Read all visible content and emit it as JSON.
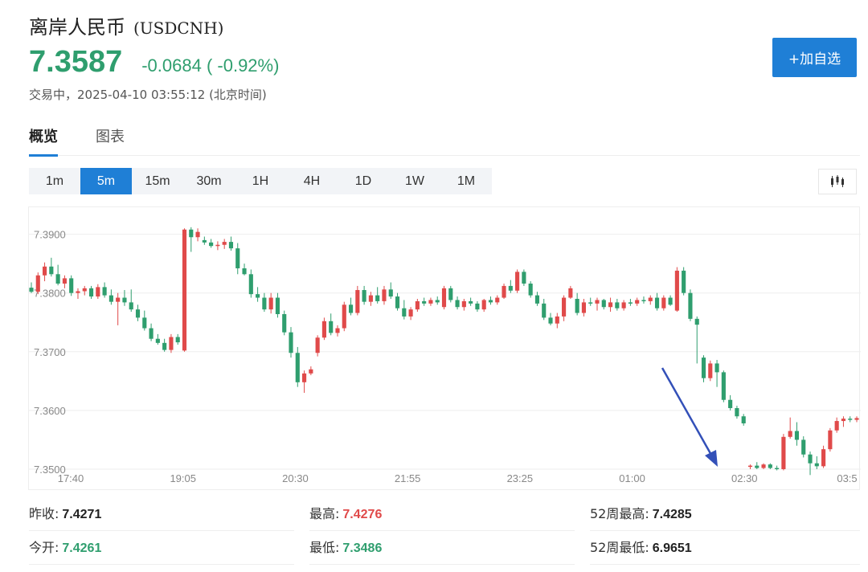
{
  "header": {
    "name": "离岸人民币",
    "code": "(USDCNH)",
    "price": "7.3587",
    "change": "-0.0684 ( -0.92%)",
    "status": "交易中，2025-04-10 03:55:12 (北京时间)",
    "watch_button": "+加自选"
  },
  "colors": {
    "up": "#e04a4a",
    "down": "#2f9e6e",
    "accent": "#1f7fd6",
    "arrow": "#3350b8"
  },
  "tabs": [
    {
      "label": "概览",
      "active": true
    },
    {
      "label": "图表",
      "active": false
    }
  ],
  "periods": [
    {
      "label": "1m",
      "active": false
    },
    {
      "label": "5m",
      "active": true
    },
    {
      "label": "15m",
      "active": false
    },
    {
      "label": "30m",
      "active": false
    },
    {
      "label": "1H",
      "active": false
    },
    {
      "label": "4H",
      "active": false
    },
    {
      "label": "1D",
      "active": false
    },
    {
      "label": "1W",
      "active": false
    },
    {
      "label": "1M",
      "active": false
    }
  ],
  "chart_type_icon": "candlestick-icon",
  "chart_data": {
    "type": "candlestick",
    "ylim": [
      7.35,
      7.3935
    ],
    "y_ticks": [
      "7.3900",
      "7.3800",
      "7.3700",
      "7.3600",
      "7.3500"
    ],
    "x_ticks": [
      "17:40",
      "19:05",
      "20:30",
      "21:55",
      "23:25",
      "01:00",
      "02:30",
      "03:5"
    ],
    "grid": true,
    "annotation": "arrow pointing down to the session low",
    "candles": [
      [
        7.3809,
        7.3818,
        7.38,
        7.3802
      ],
      [
        7.3802,
        7.3835,
        7.3798,
        7.383
      ],
      [
        7.383,
        7.3852,
        7.382,
        7.3845
      ],
      [
        7.3845,
        7.386,
        7.3828,
        7.3832
      ],
      [
        7.3832,
        7.3848,
        7.3813,
        7.3816
      ],
      [
        7.3816,
        7.383,
        7.3808,
        7.3825
      ],
      [
        7.3825,
        7.383,
        7.3795,
        7.38
      ],
      [
        7.38,
        7.3808,
        7.379,
        7.3803
      ],
      [
        7.3803,
        7.3812,
        7.3796,
        7.3808
      ],
      [
        7.3808,
        7.3812,
        7.379,
        7.3794
      ],
      [
        7.3794,
        7.3815,
        7.379,
        7.381
      ],
      [
        7.381,
        7.3818,
        7.3792,
        7.3796
      ],
      [
        7.3796,
        7.3806,
        7.378,
        7.3785
      ],
      [
        7.3785,
        7.38,
        7.3745,
        7.3792
      ],
      [
        7.3792,
        7.3805,
        7.3778,
        7.3784
      ],
      [
        7.3784,
        7.3806,
        7.3768,
        7.3772
      ],
      [
        7.3772,
        7.378,
        7.3752,
        7.3758
      ],
      [
        7.3758,
        7.377,
        7.3736,
        7.374
      ],
      [
        7.374,
        7.3748,
        7.3718,
        7.3722
      ],
      [
        7.3722,
        7.373,
        7.3712,
        7.3715
      ],
      [
        7.3715,
        7.3722,
        7.37,
        7.3703
      ],
      [
        7.3703,
        7.373,
        7.3698,
        7.3725
      ],
      [
        7.3725,
        7.373,
        7.3712,
        7.3716
      ],
      [
        7.3702,
        7.391,
        7.37,
        7.3908
      ],
      [
        7.3908,
        7.3912,
        7.387,
        7.3895
      ],
      [
        7.3895,
        7.391,
        7.3888,
        7.3904
      ],
      [
        7.389,
        7.3896,
        7.3882,
        7.3886
      ],
      [
        7.3886,
        7.3892,
        7.3877,
        7.388
      ],
      [
        7.388,
        7.3888,
        7.3873,
        7.3882
      ],
      [
        7.3882,
        7.3892,
        7.3875,
        7.3887
      ],
      [
        7.3887,
        7.3896,
        7.3872,
        7.3876
      ],
      [
        7.3876,
        7.3885,
        7.3832,
        7.3842
      ],
      [
        7.3842,
        7.385,
        7.383,
        7.3832
      ],
      [
        7.3832,
        7.384,
        7.3792,
        7.3798
      ],
      [
        7.3798,
        7.381,
        7.3785,
        7.3792
      ],
      [
        7.3792,
        7.38,
        7.3768,
        7.3772
      ],
      [
        7.3772,
        7.38,
        7.3765,
        7.3792
      ],
      [
        7.3792,
        7.38,
        7.3758,
        7.3764
      ],
      [
        7.3764,
        7.377,
        7.3728,
        7.3733
      ],
      [
        7.3733,
        7.3742,
        7.369,
        7.3698
      ],
      [
        7.3698,
        7.3708,
        7.364,
        7.3648
      ],
      [
        7.3648,
        7.3668,
        7.363,
        7.3663
      ],
      [
        7.3663,
        7.3675,
        7.366,
        7.367
      ],
      [
        7.3698,
        7.3728,
        7.3692,
        7.3724
      ],
      [
        7.3724,
        7.3758,
        7.372,
        7.3752
      ],
      [
        7.3752,
        7.3765,
        7.3728,
        7.3732
      ],
      [
        7.3732,
        7.3745,
        7.3726,
        7.374
      ],
      [
        7.374,
        7.3785,
        7.3735,
        7.378
      ],
      [
        7.378,
        7.3792,
        7.3762,
        7.3766
      ],
      [
        7.3766,
        7.3812,
        7.3762,
        7.3805
      ],
      [
        7.3805,
        7.3812,
        7.378,
        7.3785
      ],
      [
        7.3785,
        7.3802,
        7.3778,
        7.3796
      ],
      [
        7.3796,
        7.381,
        7.3782,
        7.3786
      ],
      [
        7.3786,
        7.3812,
        7.378,
        7.3806
      ],
      [
        7.3806,
        7.3818,
        7.379,
        7.3794
      ],
      [
        7.3794,
        7.38,
        7.377,
        7.3774
      ],
      [
        7.3774,
        7.3788,
        7.3755,
        7.376
      ],
      [
        7.376,
        7.3776,
        7.3754,
        7.3772
      ],
      [
        7.3772,
        7.379,
        7.3768,
        7.3786
      ],
      [
        7.3786,
        7.3792,
        7.3778,
        7.3782
      ],
      [
        7.3782,
        7.3792,
        7.3778,
        7.3788
      ],
      [
        7.3788,
        7.3794,
        7.378,
        7.3784
      ],
      [
        7.3776,
        7.3812,
        7.3772,
        7.3808
      ],
      [
        7.3808,
        7.3812,
        7.3784,
        7.3788
      ],
      [
        7.3788,
        7.3794,
        7.3772,
        7.3776
      ],
      [
        7.3776,
        7.379,
        7.377,
        7.3786
      ],
      [
        7.3786,
        7.3792,
        7.3778,
        7.3782
      ],
      [
        7.3782,
        7.3786,
        7.3768,
        7.3772
      ],
      [
        7.3772,
        7.379,
        7.3768,
        7.3788
      ],
      [
        7.3788,
        7.3794,
        7.378,
        7.3784
      ],
      [
        7.3784,
        7.3796,
        7.378,
        7.3792
      ],
      [
        7.3792,
        7.3816,
        7.379,
        7.3812
      ],
      [
        7.3812,
        7.3822,
        7.38,
        7.3804
      ],
      [
        7.3804,
        7.384,
        7.38,
        7.3836
      ],
      [
        7.3836,
        7.384,
        7.3812,
        7.3816
      ],
      [
        7.3816,
        7.382,
        7.3792,
        7.3796
      ],
      [
        7.3796,
        7.3802,
        7.3778,
        7.3782
      ],
      [
        7.3782,
        7.379,
        7.3754,
        7.3758
      ],
      [
        7.3758,
        7.3766,
        7.3745,
        7.3748
      ],
      [
        7.3748,
        7.3766,
        7.374,
        7.376
      ],
      [
        7.376,
        7.3796,
        7.3752,
        7.3792
      ],
      [
        7.3792,
        7.3812,
        7.379,
        7.3808
      ],
      [
        7.379,
        7.38,
        7.3762,
        7.3766
      ],
      [
        7.3766,
        7.379,
        7.376,
        7.3784
      ],
      [
        7.3784,
        7.3792,
        7.3778,
        7.3782
      ],
      [
        7.3782,
        7.3792,
        7.377,
        7.3788
      ],
      [
        7.3788,
        7.379,
        7.3772,
        7.3776
      ],
      [
        7.3776,
        7.3792,
        7.3768,
        7.3784
      ],
      [
        7.3784,
        7.379,
        7.377,
        7.3774
      ],
      [
        7.3774,
        7.3788,
        7.377,
        7.3784
      ],
      [
        7.3784,
        7.379,
        7.3778,
        7.3782
      ],
      [
        7.3782,
        7.3792,
        7.3778,
        7.3788
      ],
      [
        7.3788,
        7.3794,
        7.3782,
        7.3786
      ],
      [
        7.3786,
        7.3796,
        7.378,
        7.3792
      ],
      [
        7.3792,
        7.38,
        7.377,
        7.3774
      ],
      [
        7.3774,
        7.3796,
        7.377,
        7.3792
      ],
      [
        7.3792,
        7.3796,
        7.3778,
        7.378
      ],
      [
        7.377,
        7.3844,
        7.3768,
        7.3838
      ],
      [
        7.3838,
        7.3844,
        7.3796,
        7.38
      ],
      [
        7.38,
        7.3806,
        7.3752,
        7.3756
      ],
      [
        7.3756,
        7.376,
        7.368,
        7.3746
      ],
      [
        7.369,
        7.3694,
        7.3648,
        7.3655
      ],
      [
        7.3655,
        7.3685,
        7.365,
        7.368
      ],
      [
        7.368,
        7.3686,
        7.364,
        7.3665
      ],
      [
        7.3665,
        7.3668,
        7.3614,
        7.3618
      ],
      [
        7.3618,
        7.3626,
        7.36,
        7.3604
      ],
      [
        7.3604,
        7.3608,
        7.3586,
        7.359
      ],
      [
        7.359,
        7.3594,
        7.3574,
        7.3578
      ],
      [
        7.3504,
        7.3508,
        7.35,
        7.3506
      ],
      [
        7.3506,
        7.3512,
        7.35,
        7.3502
      ],
      [
        7.3502,
        7.351,
        7.35,
        7.3508
      ],
      [
        7.3508,
        7.351,
        7.35,
        7.3502
      ],
      [
        7.3502,
        7.3506,
        7.3498,
        7.35
      ],
      [
        7.35,
        7.356,
        7.3498,
        7.3555
      ],
      [
        7.3555,
        7.3588,
        7.3552,
        7.3565
      ],
      [
        7.3565,
        7.358,
        7.354,
        7.355
      ],
      [
        7.355,
        7.3556,
        7.352,
        7.3525
      ],
      [
        7.3525,
        7.353,
        7.349,
        7.351
      ],
      [
        7.351,
        7.3522,
        7.35,
        7.3505
      ],
      [
        7.3505,
        7.354,
        7.3502,
        7.3534
      ],
      [
        7.3534,
        7.357,
        7.353,
        7.3566
      ],
      [
        7.3566,
        7.3588,
        7.3562,
        7.3582
      ],
      [
        7.3582,
        7.359,
        7.3572,
        7.3586
      ],
      [
        7.3586,
        7.359,
        7.358,
        7.3584
      ],
      [
        7.3584,
        7.359,
        7.358,
        7.3587
      ]
    ]
  },
  "stats": [
    {
      "label": "昨收:",
      "value": "7.4271",
      "tone": "neutral"
    },
    {
      "label": "最高:",
      "value": "7.4276",
      "tone": "up"
    },
    {
      "label": "52周最高:",
      "value": "7.4285",
      "tone": "neutral"
    },
    {
      "label": "今开:",
      "value": "7.4261",
      "tone": "down"
    },
    {
      "label": "最低:",
      "value": "7.3486",
      "tone": "down"
    },
    {
      "label": "52周最低:",
      "value": "6.9651",
      "tone": "neutral"
    }
  ]
}
